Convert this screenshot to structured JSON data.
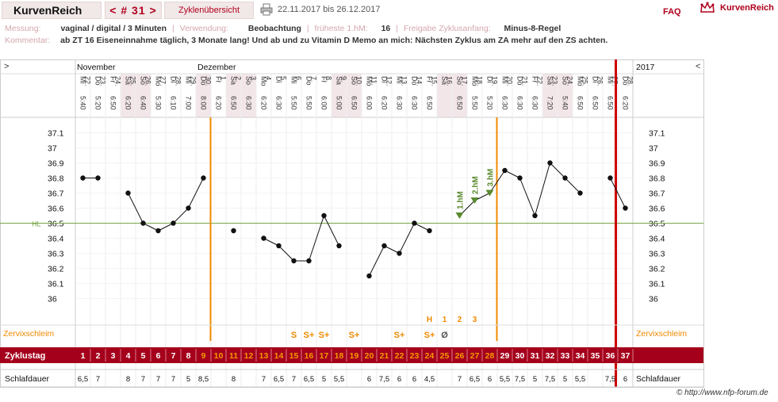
{
  "header": {
    "logo": "KurvenReich",
    "nav": "< # 31 >",
    "overview": "Zyklenübersicht",
    "range": "22.11.2017 bis 26.12.2017",
    "faq": "FAQ",
    "brand": "KurvenReich"
  },
  "info": {
    "messung_label": "Messung:",
    "messung": "vaginal / digital / 3 Minuten",
    "verwendung_label": "Verwendung:",
    "verwendung": "Beobachtung",
    "hm_label": "früheste 1.hM:",
    "hm": "16",
    "freigabe_label": "Freigabe Zyklusanfang:",
    "freigabe": "Minus-8-Regel",
    "kommentar_label": "Kommentar:",
    "kommentar": "ab ZT 16 Eiseneinnahme täglich, 3 Monate lang! Und ab und zu Vitamin D  Memo an mich: Nächsten Zyklus am ZA mehr auf den ZS achten."
  },
  "chart_data": {
    "type": "line",
    "left_arrow": ">",
    "right_arrow": "<",
    "months": [
      {
        "label": "November",
        "day": 0
      },
      {
        "label": "Dezember",
        "day": 8
      }
    ],
    "year": "2017",
    "dates": [
      "22.",
      "23.",
      "24.",
      "25.",
      "26.",
      "27.",
      "28.",
      "29.",
      "30.",
      "1.",
      "2.",
      "3.",
      "4.",
      "5.",
      "6.",
      "7.",
      "8.",
      "9.",
      "10.",
      "11.",
      "12.",
      "13.",
      "14.",
      "15.",
      "16.",
      "17.",
      "18.",
      "19.",
      "20.",
      "21.",
      "22.",
      "23.",
      "24.",
      "25.",
      "26.",
      "27.",
      "28."
    ],
    "weekdays": [
      "Mi",
      "Do",
      "Fr",
      "Sa",
      "So",
      "Mo",
      "Di",
      "Mi",
      "Do",
      "Fr",
      "Sa",
      "So",
      "Mo",
      "Di",
      "Mi",
      "Do",
      "Fr",
      "Sa",
      "So",
      "Mo",
      "Di",
      "Mi",
      "Do",
      "Fr",
      "Sa",
      "So",
      "Mo",
      "Di",
      "Mi",
      "Do",
      "Fr",
      "Sa",
      "So",
      "Mo",
      "Di",
      "Mi",
      "Do"
    ],
    "times": [
      "5:40",
      "5:20",
      "6:50",
      "6:20",
      "6:40",
      "5:30",
      "6:10",
      "7:00",
      "8:00",
      "6:20",
      "6:50",
      "6:30",
      "6:20",
      "6:30",
      "5:50",
      "5:50",
      "6:00",
      "5:00",
      "6:50",
      "6:00",
      "6:20",
      "6:30",
      "6:30",
      "6:50",
      "",
      "6:50",
      "5:50",
      "5:20",
      "6:30",
      "6:30",
      "6:30",
      "7:20",
      "5:40",
      "6:50",
      "6:50",
      "6:50",
      "6:20"
    ],
    "temps": [
      36.8,
      36.8,
      null,
      36.7,
      36.5,
      36.45,
      36.5,
      36.6,
      36.8,
      null,
      36.45,
      null,
      36.4,
      36.35,
      36.25,
      36.25,
      36.55,
      36.35,
      null,
      36.15,
      36.35,
      36.3,
      36.5,
      36.45,
      null,
      36.55,
      36.65,
      36.7,
      36.85,
      36.8,
      36.55,
      36.9,
      36.8,
      36.7,
      null,
      36.8,
      36.6
    ],
    "y_ticks": [
      37.1,
      37,
      36.9,
      36.8,
      36.7,
      36.6,
      36.5,
      36.4,
      36.3,
      36.2,
      36.1,
      36
    ],
    "y_tick_labels": [
      "37.1",
      "37",
      "36.9",
      "36.8",
      "36.7",
      "36.6",
      "36.5",
      "36.4",
      "36.3",
      "36.2",
      "36.1",
      "36"
    ],
    "ylim": [
      35.9,
      37.2
    ],
    "hl_label": "HL",
    "hl_value": 36.5,
    "hm_marks": [
      {
        "day": 25,
        "label": "1.hM"
      },
      {
        "day": 26,
        "label": "2.hM"
      },
      {
        "day": 27,
        "label": "3.hM"
      }
    ],
    "zervix_label": "Zervixschleim",
    "zervix": [
      "",
      "",
      "",
      "",
      "",
      "",
      "",
      "",
      "",
      "",
      "",
      "",
      "",
      "",
      "S",
      "S+",
      "S+",
      "",
      "S+",
      "",
      "",
      "S+",
      "",
      "S+",
      "Ø",
      "",
      "",
      "",
      "",
      "",
      "",
      "",
      "",
      "",
      "",
      "",
      ""
    ],
    "top_marks": [
      "",
      "",
      "",
      "",
      "",
      "",
      "",
      "",
      "",
      "",
      "",
      "",
      "",
      "",
      "",
      "",
      "",
      "",
      "",
      "",
      "",
      "",
      "",
      "H",
      "1",
      "2",
      "3",
      "",
      "",
      "",
      "",
      "",
      "",
      "",
      "",
      "",
      ""
    ],
    "zyklustag_label": "Zyklustag",
    "zyklustag": [
      "1",
      "2",
      "3",
      "4",
      "5",
      "6",
      "7",
      "8",
      "9",
      "10",
      "11",
      "12",
      "13",
      "14",
      "15",
      "16",
      "17",
      "18",
      "19",
      "20",
      "21",
      "22",
      "23",
      "24",
      "25",
      "26",
      "27",
      "28",
      "29",
      "30",
      "31",
      "32",
      "33",
      "34",
      "35",
      "36",
      "37"
    ],
    "fertile_from": 8,
    "fertile_to": 27,
    "schlaf_label": "Schlafdauer",
    "schlaf": [
      "6,5",
      "7",
      "",
      "8",
      "7",
      "7",
      "7",
      "5",
      "8,5",
      "",
      "8",
      "",
      "7",
      "6,5",
      "7",
      "6,5",
      "5",
      "5,5",
      "",
      "6",
      "7,5",
      "6",
      "6",
      "4,5",
      "",
      "7",
      "6,5",
      "6",
      "5,5",
      "7,5",
      "5",
      "7,5",
      "5",
      "5,5",
      "",
      "7,5",
      "6"
    ],
    "shaded_days": [
      3,
      4,
      8,
      10,
      11,
      17,
      18,
      24,
      25,
      31,
      32
    ],
    "orange_lines": [
      8,
      27
    ],
    "red_line": 35
  },
  "footer": "© http://www.nfp-forum.de",
  "colors": {
    "accent": "#b0001c",
    "orange": "#f08a00",
    "hl": "#7aa64a",
    "marker": "#5a8a2e"
  }
}
